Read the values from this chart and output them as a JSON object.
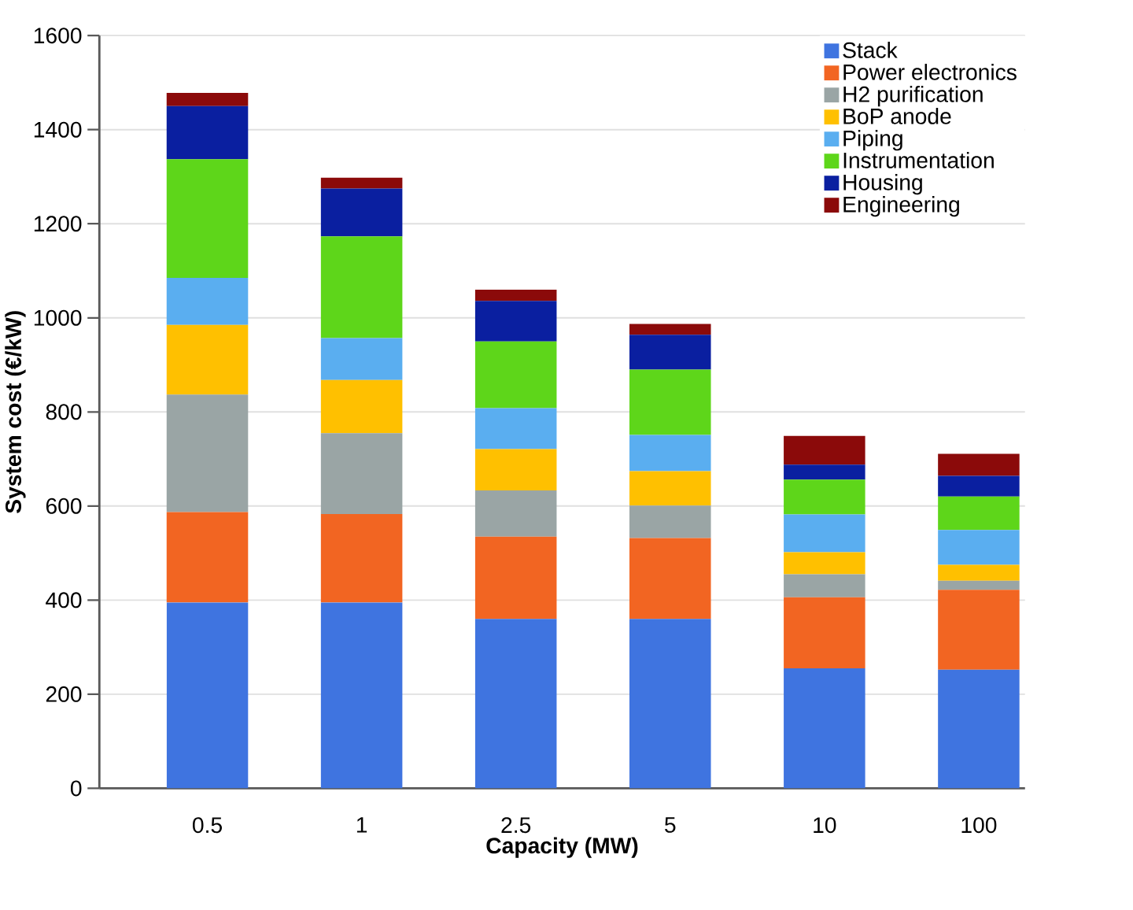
{
  "chart_data": {
    "type": "bar",
    "stacked": true,
    "xlabel": "Capacity (MW)",
    "ylabel": "System cost (€/kW)",
    "categories": [
      "0.5",
      "1",
      "2.5",
      "5",
      "10",
      "100"
    ],
    "ylim": [
      0,
      1600
    ],
    "yticks": [
      0,
      200,
      400,
      600,
      800,
      1000,
      1200,
      1400,
      1600
    ],
    "grid": "y",
    "legend": "top right",
    "series": [
      {
        "name": "Stack",
        "color": "#3f74e0",
        "values": [
          395,
          395,
          360,
          360,
          255,
          252
        ]
      },
      {
        "name": "Power electronics",
        "color": "#f26522",
        "values": [
          192,
          188,
          175,
          172,
          151,
          170
        ]
      },
      {
        "name": "H2 purification",
        "color": "#9aa5a5",
        "values": [
          250,
          172,
          98,
          69,
          49,
          19
        ]
      },
      {
        "name": "BoP anode",
        "color": "#ffc000",
        "values": [
          148,
          113,
          88,
          73,
          47,
          34
        ]
      },
      {
        "name": "Piping",
        "color": "#5aaef0",
        "values": [
          100,
          89,
          87,
          77,
          80,
          74
        ]
      },
      {
        "name": "Instrumentation",
        "color": "#5ed61a",
        "values": [
          252,
          216,
          142,
          139,
          74,
          71
        ]
      },
      {
        "name": "Housing",
        "color": "#0a1fa0",
        "values": [
          113,
          102,
          86,
          74,
          32,
          44
        ]
      },
      {
        "name": "Engineering",
        "color": "#8b0a0a",
        "values": [
          28,
          23,
          24,
          23,
          61,
          47
        ]
      }
    ]
  }
}
